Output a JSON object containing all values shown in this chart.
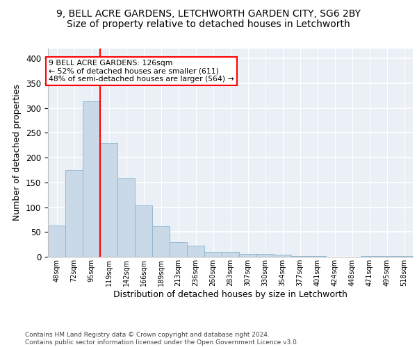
{
  "title1": "9, BELL ACRE GARDENS, LETCHWORTH GARDEN CITY, SG6 2BY",
  "title2": "Size of property relative to detached houses in Letchworth",
  "xlabel": "Distribution of detached houses by size in Letchworth",
  "ylabel": "Number of detached properties",
  "footnote": "Contains HM Land Registry data © Crown copyright and database right 2024.\nContains public sector information licensed under the Open Government Licence v3.0.",
  "bin_labels": [
    "48sqm",
    "72sqm",
    "95sqm",
    "119sqm",
    "142sqm",
    "166sqm",
    "189sqm",
    "213sqm",
    "236sqm",
    "260sqm",
    "283sqm",
    "307sqm",
    "330sqm",
    "354sqm",
    "377sqm",
    "401sqm",
    "424sqm",
    "448sqm",
    "471sqm",
    "495sqm",
    "518sqm"
  ],
  "bar_values": [
    63,
    175,
    313,
    230,
    158,
    103,
    62,
    29,
    22,
    10,
    10,
    6,
    5,
    4,
    2,
    1,
    0,
    0,
    2,
    1,
    2
  ],
  "bar_color": "#c9d9e8",
  "bar_edge_color": "#8ab4cc",
  "vline_x": 2.5,
  "annotation_text": "9 BELL ACRE GARDENS: 126sqm\n← 52% of detached houses are smaller (611)\n48% of semi-detached houses are larger (564) →",
  "annotation_box_color": "white",
  "annotation_box_edge_color": "red",
  "vline_color": "red",
  "ylim": [
    0,
    420
  ],
  "yticks": [
    0,
    50,
    100,
    150,
    200,
    250,
    300,
    350,
    400
  ],
  "bg_color": "#eaf0f6",
  "grid_color": "white",
  "title1_fontsize": 10,
  "title2_fontsize": 10,
  "xlabel_fontsize": 9,
  "ylabel_fontsize": 9,
  "footnote_fontsize": 6.5
}
